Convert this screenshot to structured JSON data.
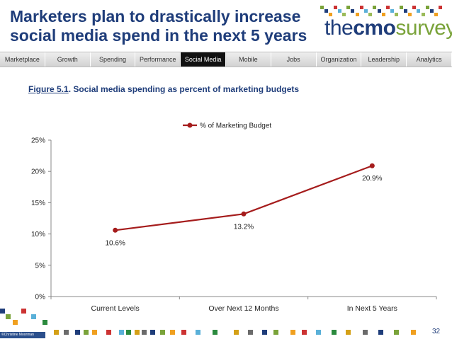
{
  "header": {
    "title_line1": "Marketers plan to drastically increase",
    "title_line2": "social media spend in the next 5 years"
  },
  "logo": {
    "the": "the",
    "cmo": "cmo",
    "survey": "survey"
  },
  "nav": {
    "items": [
      "Marketplace",
      "Growth",
      "Spending",
      "Performance",
      "Social Media",
      "Mobile",
      "Jobs",
      "Organization",
      "Leadership",
      "Analytics"
    ],
    "active": "Social Media"
  },
  "figure": {
    "label": "Figure 5.1",
    "caption": ". Social media spending as percent of marketing budgets"
  },
  "chart_data": {
    "type": "line",
    "title": "",
    "categories": [
      "Current Levels",
      "Over Next 12 Months",
      "In Next 5 Years"
    ],
    "series": [
      {
        "name": "% of Marketing Budget",
        "values": [
          10.6,
          13.2,
          20.9
        ],
        "color": "#a51c1c"
      }
    ],
    "data_labels": [
      "10.6%",
      "13.2%",
      "20.9%"
    ],
    "y_ticks": [
      "0%",
      "5%",
      "10%",
      "15%",
      "20%",
      "25%"
    ],
    "ylim": [
      0,
      25
    ],
    "legend_position": "top-center",
    "grid": false,
    "xlabel": "",
    "ylabel": ""
  },
  "colors": {
    "title": "#1f3d7a",
    "line": "#a51c1c",
    "nav_active": "#111111",
    "brand_green": "#7aa33a"
  },
  "footer": {
    "credit": "©Christine Moorman",
    "page_number": "32"
  }
}
